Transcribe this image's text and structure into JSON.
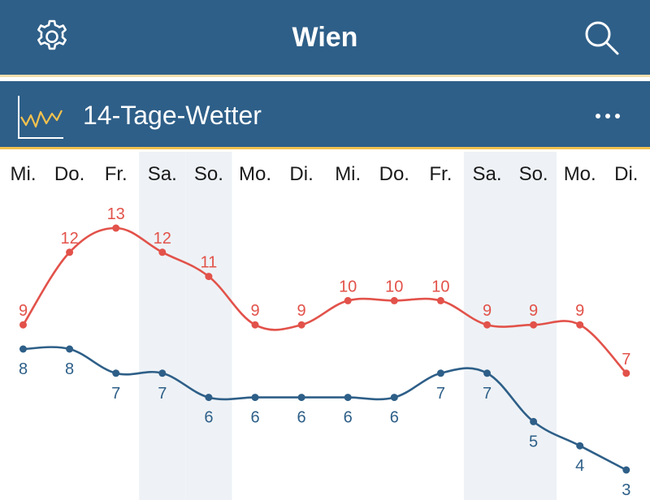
{
  "header": {
    "title": "Wien",
    "settings_icon": "gear-icon",
    "search_icon": "search-icon"
  },
  "section": {
    "title": "14-Tage-Wetter",
    "icon": "line-chart-icon",
    "menu_icon": "more-horizontal-icon"
  },
  "colors": {
    "header_bg": "#2e5f88",
    "accent": "#f2c14e",
    "max_line": "#e2524a",
    "min_line": "#2e5f88",
    "weekend_bg": "#eef2f6"
  },
  "chart_data": {
    "type": "line",
    "categories": [
      "Mi.",
      "Do.",
      "Fr.",
      "Sa.",
      "So.",
      "Mo.",
      "Di.",
      "Mi.",
      "Do.",
      "Fr.",
      "Sa.",
      "So.",
      "Mo.",
      "Di."
    ],
    "weekend_indices": [
      3,
      4,
      10,
      11
    ],
    "series": [
      {
        "values": [
          9,
          12,
          13,
          12,
          11,
          9,
          9,
          10,
          10,
          10,
          9,
          9,
          9,
          7
        ],
        "color": "#e2524a"
      },
      {
        "values": [
          8,
          8,
          7,
          7,
          6,
          6,
          6,
          6,
          6,
          7,
          7,
          5,
          4,
          3
        ],
        "color": "#2e5f88"
      }
    ],
    "ylim": [
      3,
      13
    ],
    "legend": "none",
    "grid": false
  }
}
